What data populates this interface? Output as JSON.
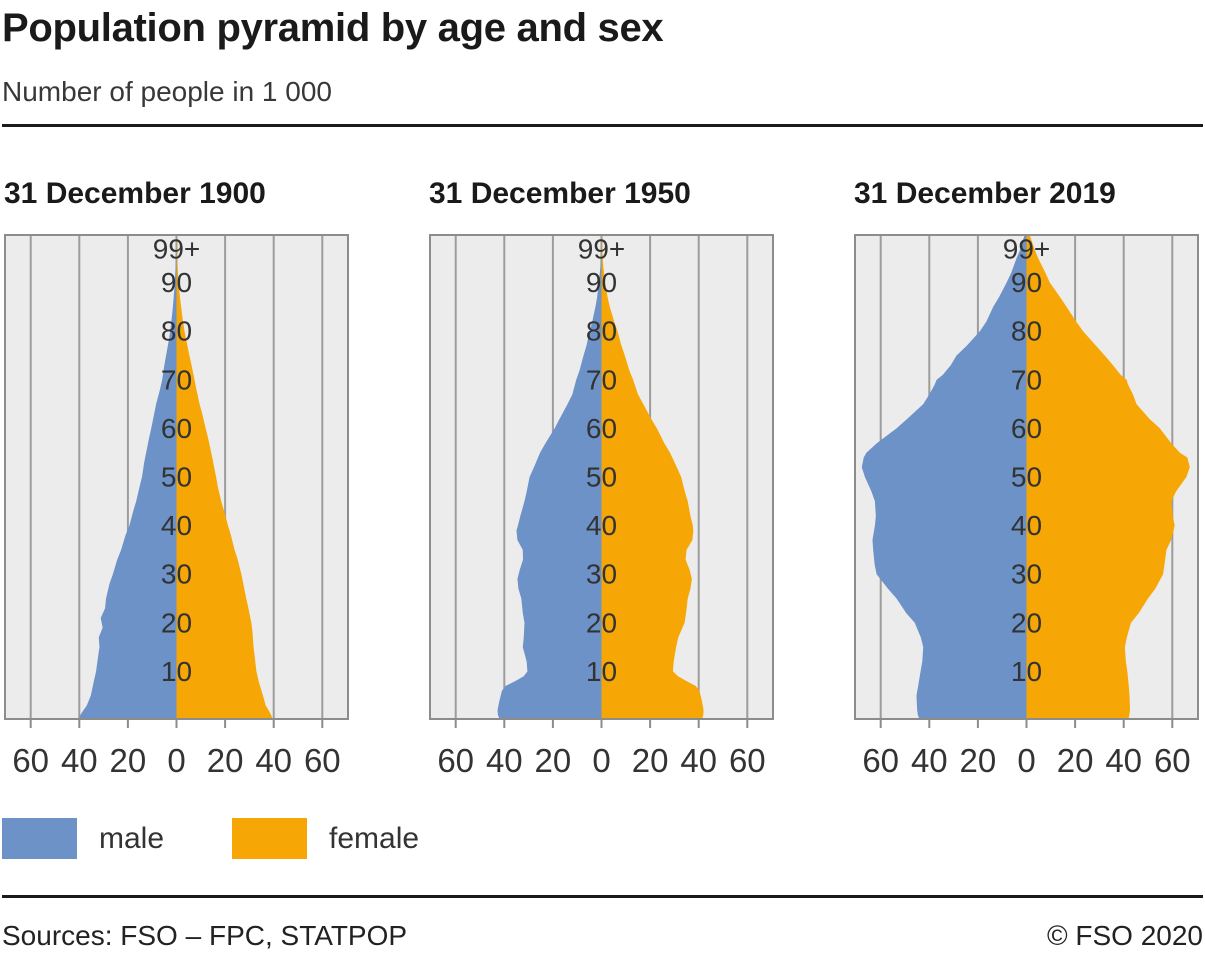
{
  "header": {
    "title": "Population pyramid by age and sex",
    "subtitle": "Number of people in 1 000"
  },
  "legend": {
    "male_label": "male",
    "female_label": "female"
  },
  "footer": {
    "sources": "Sources: FSO – FPC, STATPOP",
    "copyright": "© FSO 2020"
  },
  "colors": {
    "male": "#6c92c8",
    "female": "#f6a605",
    "plot_background": "#ececec",
    "gridline": "#9c9c9c",
    "plot_border": "#8c8c8c",
    "label_text": "#333333"
  },
  "chart_data": {
    "type": "area",
    "variant": "population-pyramid",
    "unit": "thousands of people per one-year age class",
    "x_tick_values": [
      -60,
      -40,
      -20,
      0,
      20,
      40,
      60
    ],
    "x_tick_label_style": "absolute",
    "x_axis_range": [
      -71,
      71
    ],
    "age_range": [
      0,
      100
    ],
    "age_axis_labels": [
      "10",
      "20",
      "30",
      "40",
      "50",
      "60",
      "70",
      "80",
      "90",
      "99+"
    ],
    "legend_position": "bottom-left",
    "grid": true,
    "panels": [
      {
        "date_label": "31 December 1900",
        "male": [
          [
            0,
            40.3
          ],
          [
            1,
            39.6
          ],
          [
            2,
            38.3
          ],
          [
            3,
            36.9
          ],
          [
            5,
            35.3
          ],
          [
            8,
            34.0
          ],
          [
            10,
            33.1
          ],
          [
            13,
            32.3
          ],
          [
            15,
            31.7
          ],
          [
            17,
            32.0
          ],
          [
            19,
            30.4
          ],
          [
            21,
            31.2
          ],
          [
            23,
            29.4
          ],
          [
            25,
            29.0
          ],
          [
            28,
            27.6
          ],
          [
            30,
            26.2
          ],
          [
            33,
            24.4
          ],
          [
            35,
            22.8
          ],
          [
            38,
            21.0
          ],
          [
            40,
            19.4
          ],
          [
            43,
            17.8
          ],
          [
            45,
            16.6
          ],
          [
            48,
            15.2
          ],
          [
            50,
            14.2
          ],
          [
            53,
            13.3
          ],
          [
            55,
            12.5
          ],
          [
            58,
            11.3
          ],
          [
            60,
            10.4
          ],
          [
            63,
            9.2
          ],
          [
            65,
            8.4
          ],
          [
            68,
            6.8
          ],
          [
            70,
            5.9
          ],
          [
            73,
            5.0
          ],
          [
            75,
            4.3
          ],
          [
            78,
            3.2
          ],
          [
            80,
            2.6
          ],
          [
            83,
            1.9
          ],
          [
            85,
            1.5
          ],
          [
            88,
            1.0
          ],
          [
            90,
            0.7
          ],
          [
            93,
            0.4
          ],
          [
            95,
            0.2
          ],
          [
            100,
            0.05
          ]
        ],
        "female": [
          [
            0,
            39.6
          ],
          [
            1,
            39.0
          ],
          [
            2,
            37.9
          ],
          [
            3,
            36.7
          ],
          [
            5,
            35.6
          ],
          [
            8,
            33.8
          ],
          [
            10,
            32.9
          ],
          [
            13,
            32.2
          ],
          [
            15,
            31.7
          ],
          [
            18,
            31.3
          ],
          [
            20,
            30.8
          ],
          [
            23,
            29.6
          ],
          [
            25,
            28.7
          ],
          [
            28,
            27.5
          ],
          [
            30,
            26.7
          ],
          [
            33,
            25.2
          ],
          [
            35,
            23.9
          ],
          [
            38,
            22.4
          ],
          [
            40,
            21.2
          ],
          [
            43,
            19.6
          ],
          [
            45,
            18.4
          ],
          [
            48,
            17.0
          ],
          [
            50,
            16.3
          ],
          [
            53,
            15.1
          ],
          [
            55,
            14.3
          ],
          [
            58,
            13.0
          ],
          [
            60,
            12.0
          ],
          [
            63,
            10.6
          ],
          [
            65,
            9.5
          ],
          [
            68,
            8.2
          ],
          [
            70,
            7.4
          ],
          [
            73,
            6.2
          ],
          [
            75,
            5.3
          ],
          [
            78,
            4.1
          ],
          [
            80,
            3.3
          ],
          [
            83,
            2.4
          ],
          [
            85,
            1.9
          ],
          [
            88,
            1.2
          ],
          [
            90,
            0.8
          ],
          [
            93,
            0.5
          ],
          [
            95,
            0.3
          ],
          [
            100,
            0.1
          ]
        ]
      },
      {
        "date_label": "31 December 1950",
        "male": [
          [
            0,
            41.8
          ],
          [
            1,
            42.6
          ],
          [
            2,
            42.8
          ],
          [
            4,
            42.0
          ],
          [
            6,
            41.0
          ],
          [
            7,
            39.5
          ],
          [
            8,
            35.5
          ],
          [
            9,
            32.0
          ],
          [
            10,
            30.5
          ],
          [
            12,
            30.8
          ],
          [
            15,
            32.4
          ],
          [
            17,
            32.0
          ],
          [
            20,
            31.7
          ],
          [
            22,
            32.4
          ],
          [
            25,
            33.0
          ],
          [
            27,
            34.2
          ],
          [
            29,
            34.6
          ],
          [
            31,
            33.6
          ],
          [
            33,
            32.3
          ],
          [
            35,
            32.4
          ],
          [
            37,
            34.6
          ],
          [
            39,
            35.0
          ],
          [
            40,
            34.4
          ],
          [
            42,
            33.4
          ],
          [
            45,
            31.7
          ],
          [
            47,
            30.8
          ],
          [
            50,
            29.6
          ],
          [
            52,
            27.8
          ],
          [
            55,
            25.3
          ],
          [
            57,
            23.0
          ],
          [
            60,
            19.3
          ],
          [
            62,
            17.2
          ],
          [
            65,
            14.0
          ],
          [
            67,
            12.0
          ],
          [
            70,
            10.4
          ],
          [
            72,
            9.0
          ],
          [
            75,
            7.4
          ],
          [
            77,
            6.2
          ],
          [
            80,
            4.9
          ],
          [
            82,
            3.8
          ],
          [
            85,
            2.5
          ],
          [
            87,
            1.8
          ],
          [
            90,
            1.1
          ],
          [
            93,
            0.5
          ],
          [
            95,
            0.3
          ],
          [
            100,
            0.05
          ]
        ],
        "female": [
          [
            0,
            41.2
          ],
          [
            1,
            41.9
          ],
          [
            2,
            42.0
          ],
          [
            4,
            41.3
          ],
          [
            6,
            40.3
          ],
          [
            7,
            38.8
          ],
          [
            8,
            35.0
          ],
          [
            9,
            31.5
          ],
          [
            10,
            29.4
          ],
          [
            12,
            29.7
          ],
          [
            15,
            30.7
          ],
          [
            17,
            31.6
          ],
          [
            20,
            34.2
          ],
          [
            22,
            34.8
          ],
          [
            25,
            35.5
          ],
          [
            27,
            36.6
          ],
          [
            29,
            37.2
          ],
          [
            31,
            36.2
          ],
          [
            33,
            34.6
          ],
          [
            35,
            35.0
          ],
          [
            37,
            37.4
          ],
          [
            39,
            37.8
          ],
          [
            40,
            37.6
          ],
          [
            42,
            36.6
          ],
          [
            45,
            35.5
          ],
          [
            47,
            34.3
          ],
          [
            50,
            32.8
          ],
          [
            52,
            31.0
          ],
          [
            55,
            28.2
          ],
          [
            57,
            25.8
          ],
          [
            60,
            22.8
          ],
          [
            62,
            20.4
          ],
          [
            65,
            17.2
          ],
          [
            67,
            15.0
          ],
          [
            70,
            13.0
          ],
          [
            72,
            11.4
          ],
          [
            75,
            9.6
          ],
          [
            77,
            8.2
          ],
          [
            80,
            6.6
          ],
          [
            82,
            5.2
          ],
          [
            85,
            3.4
          ],
          [
            87,
            2.5
          ],
          [
            90,
            1.5
          ],
          [
            93,
            0.8
          ],
          [
            95,
            0.5
          ],
          [
            100,
            0.1
          ]
        ]
      },
      {
        "date_label": "31 December 2019",
        "male": [
          [
            0,
            43.9
          ],
          [
            1,
            44.7
          ],
          [
            2,
            45.0
          ],
          [
            5,
            45.3
          ],
          [
            7,
            44.6
          ],
          [
            10,
            43.6
          ],
          [
            12,
            42.9
          ],
          [
            15,
            42.5
          ],
          [
            17,
            43.5
          ],
          [
            20,
            46.0
          ],
          [
            22,
            49.5
          ],
          [
            25,
            53.5
          ],
          [
            27,
            57.0
          ],
          [
            30,
            61.7
          ],
          [
            32,
            62.5
          ],
          [
            35,
            63.1
          ],
          [
            37,
            63.4
          ],
          [
            40,
            62.4
          ],
          [
            42,
            62.0
          ],
          [
            45,
            62.4
          ],
          [
            47,
            63.8
          ],
          [
            50,
            66.5
          ],
          [
            52,
            67.8
          ],
          [
            54,
            67.0
          ],
          [
            55,
            65.9
          ],
          [
            57,
            61.5
          ],
          [
            60,
            53.5
          ],
          [
            62,
            49.0
          ],
          [
            65,
            42.5
          ],
          [
            67,
            40.0
          ],
          [
            69,
            37.8
          ],
          [
            70,
            37.0
          ],
          [
            71,
            34.5
          ],
          [
            73,
            31.2
          ],
          [
            75,
            28.8
          ],
          [
            77,
            24.6
          ],
          [
            80,
            19.2
          ],
          [
            82,
            16.5
          ],
          [
            85,
            13.7
          ],
          [
            87,
            11.3
          ],
          [
            90,
            8.2
          ],
          [
            92,
            6.3
          ],
          [
            95,
            4.1
          ],
          [
            97,
            2.4
          ],
          [
            100,
            0.7
          ]
        ],
        "female": [
          [
            0,
            41.9
          ],
          [
            1,
            42.3
          ],
          [
            2,
            42.6
          ],
          [
            5,
            42.4
          ],
          [
            7,
            42.1
          ],
          [
            10,
            41.5
          ],
          [
            12,
            40.9
          ],
          [
            15,
            40.5
          ],
          [
            17,
            41.3
          ],
          [
            20,
            43.0
          ],
          [
            22,
            46.2
          ],
          [
            25,
            50.0
          ],
          [
            27,
            53.0
          ],
          [
            30,
            56.2
          ],
          [
            32,
            56.8
          ],
          [
            35,
            57.6
          ],
          [
            37,
            59.5
          ],
          [
            40,
            61.0
          ],
          [
            42,
            60.2
          ],
          [
            45,
            59.7
          ],
          [
            47,
            61.5
          ],
          [
            50,
            65.8
          ],
          [
            52,
            67.2
          ],
          [
            54,
            66.2
          ],
          [
            55,
            63.1
          ],
          [
            57,
            59.5
          ],
          [
            60,
            54.9
          ],
          [
            62,
            50.5
          ],
          [
            65,
            45.3
          ],
          [
            67,
            43.8
          ],
          [
            69,
            41.8
          ],
          [
            70,
            41.2
          ],
          [
            71,
            38.8
          ],
          [
            73,
            35.6
          ],
          [
            75,
            32.2
          ],
          [
            77,
            28.6
          ],
          [
            80,
            23.3
          ],
          [
            82,
            20.4
          ],
          [
            85,
            16.5
          ],
          [
            87,
            13.8
          ],
          [
            90,
            9.6
          ],
          [
            92,
            7.8
          ],
          [
            95,
            4.8
          ],
          [
            97,
            3.2
          ],
          [
            100,
            1.2
          ]
        ]
      }
    ]
  }
}
